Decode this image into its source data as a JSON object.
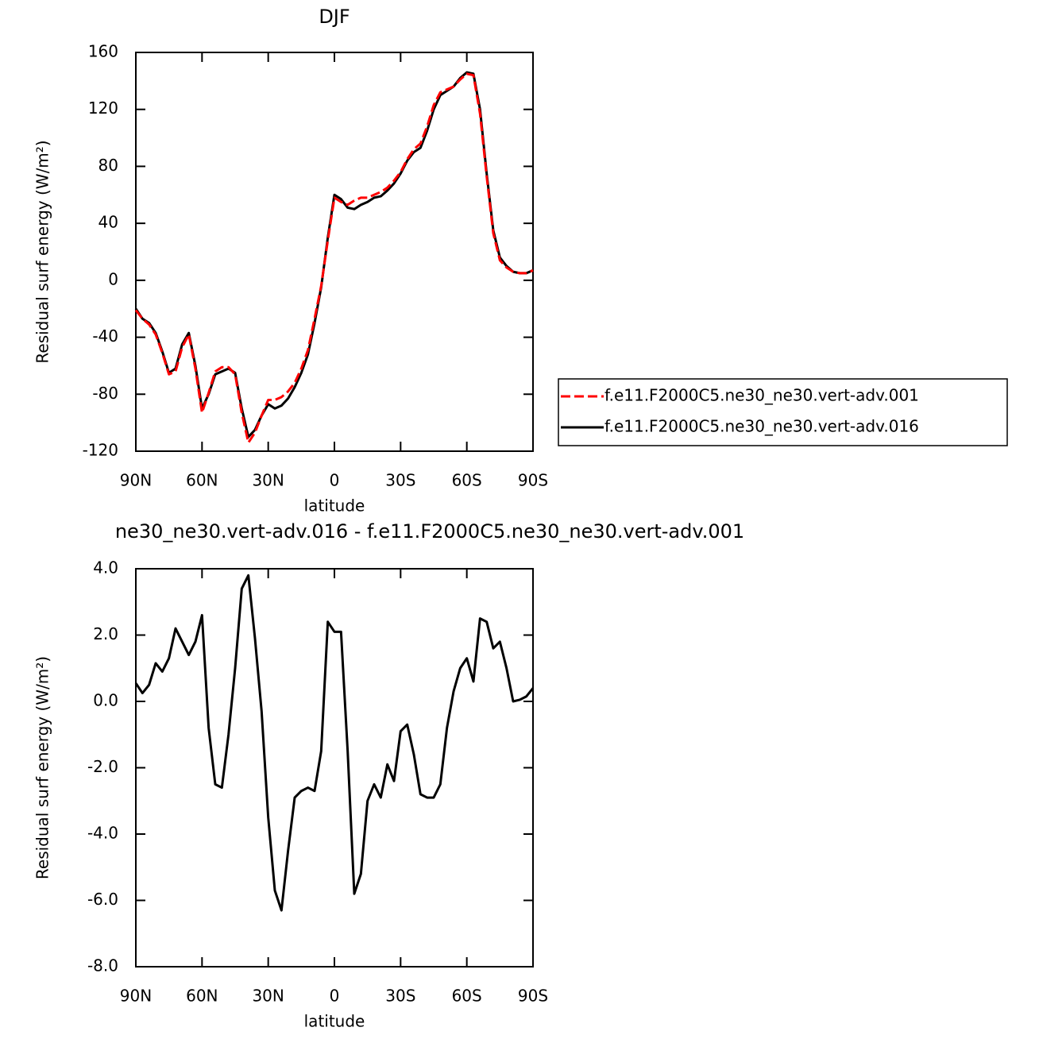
{
  "chart_data": [
    {
      "type": "line",
      "title": "DJF",
      "xlabel": "latitude",
      "ylabel": "Residual surf energy (W/m²)",
      "x": [
        90,
        87,
        84,
        81,
        78,
        75,
        72,
        69,
        66,
        63,
        60,
        57,
        54,
        51,
        48,
        45,
        42,
        39,
        36,
        33,
        30,
        27,
        24,
        21,
        18,
        15,
        12,
        9,
        6,
        3,
        0,
        -3,
        -6,
        -9,
        -12,
        -15,
        -18,
        -21,
        -24,
        -27,
        -30,
        -33,
        -36,
        -39,
        -42,
        -45,
        -48,
        -51,
        -54,
        -57,
        -60,
        -63,
        -66,
        -69,
        -72,
        -75,
        -78,
        -81,
        -84,
        -87,
        -90
      ],
      "xlim": [
        90,
        -90
      ],
      "xticks": [
        {
          "value": 90,
          "label": "90N"
        },
        {
          "value": 60,
          "label": "60N"
        },
        {
          "value": 30,
          "label": "30N"
        },
        0,
        {
          "value": -30,
          "label": "30S"
        },
        {
          "value": -60,
          "label": "60S"
        },
        {
          "value": -90,
          "label": "90S"
        }
      ],
      "ylim": [
        -120,
        160
      ],
      "yticks": [
        160,
        120,
        80,
        40,
        0,
        -40,
        -80,
        -120
      ],
      "legend": "right",
      "series": [
        {
          "name": "f.e11.F2000C5.ne30_ne30.vert-adv.001",
          "color": "#ff0000",
          "dashed": true,
          "values": [
            -21,
            -27,
            -31,
            -38,
            -51,
            -66,
            -64,
            -47,
            -38,
            -62,
            -93,
            -79,
            -64,
            -61,
            -61,
            -66,
            -93,
            -114,
            -107,
            -95,
            -84,
            -84,
            -82,
            -78,
            -72,
            -62,
            -49,
            -27,
            -4,
            28,
            58,
            55,
            53,
            56,
            58,
            58,
            60,
            62,
            65,
            70,
            76,
            85,
            92,
            96,
            108,
            123,
            132,
            134,
            136,
            141,
            145,
            144,
            117,
            73,
            33,
            14,
            9,
            6,
            5,
            5,
            7
          ]
        },
        {
          "name": "f.e11.F2000C5.ne30_ne30.vert-adv.016",
          "color": "#000000",
          "dashed": false,
          "values": [
            -20,
            -27,
            -30,
            -37,
            -50,
            -65,
            -62,
            -45,
            -37,
            -60,
            -90,
            -80,
            -66,
            -64,
            -62,
            -65,
            -90,
            -110,
            -105,
            -95,
            -87,
            -90,
            -88,
            -83,
            -75,
            -65,
            -52,
            -30,
            -5,
            30,
            60,
            57,
            51,
            50,
            53,
            55,
            58,
            59,
            63,
            68,
            75,
            84,
            90,
            93,
            105,
            120,
            130,
            133,
            136,
            142,
            146,
            145,
            120,
            75,
            35,
            16,
            10,
            6,
            5,
            5,
            7
          ]
        }
      ]
    },
    {
      "type": "line",
      "title": "ne30_ne30.vert-adv.016 - f.e11.F2000C5.ne30_ne30.vert-adv.001",
      "xlabel": "latitude",
      "ylabel": "Residual surf energy (W/m²)",
      "x": [
        90,
        87,
        84,
        81,
        78,
        75,
        72,
        69,
        66,
        63,
        60,
        57,
        54,
        51,
        48,
        45,
        42,
        39,
        36,
        33,
        30,
        27,
        24,
        21,
        18,
        15,
        12,
        9,
        6,
        3,
        0,
        -3,
        -6,
        -9,
        -12,
        -15,
        -18,
        -21,
        -24,
        -27,
        -30,
        -33,
        -36,
        -39,
        -42,
        -45,
        -48,
        -51,
        -54,
        -57,
        -60,
        -63,
        -66,
        -69,
        -72,
        -75,
        -78,
        -81,
        -84,
        -87,
        -90
      ],
      "xlim": [
        90,
        -90
      ],
      "xticks": [
        {
          "value": 90,
          "label": "90N"
        },
        {
          "value": 60,
          "label": "60N"
        },
        {
          "value": 30,
          "label": "30N"
        },
        0,
        {
          "value": -30,
          "label": "30S"
        },
        {
          "value": -60,
          "label": "60S"
        },
        {
          "value": -90,
          "label": "90S"
        }
      ],
      "ylim": [
        -8,
        4
      ],
      "yticks": [
        {
          "value": 4,
          "label": "4.0"
        },
        {
          "value": 2,
          "label": "2.0"
        },
        {
          "value": 0,
          "label": "0.0"
        },
        {
          "value": -2,
          "label": "-2.0"
        },
        {
          "value": -4,
          "label": "-4.0"
        },
        {
          "value": -6,
          "label": "-6.0"
        },
        {
          "value": -8,
          "label": "-8.0"
        }
      ],
      "series": [
        {
          "color": "#000000",
          "dashed": false,
          "values": [
            0.55,
            0.25,
            0.5,
            1.15,
            0.9,
            1.3,
            2.2,
            1.8,
            1.4,
            1.8,
            2.6,
            -0.8,
            -2.5,
            -2.6,
            -1.0,
            1.0,
            3.4,
            3.8,
            1.9,
            -0.3,
            -3.5,
            -5.7,
            -6.3,
            -4.5,
            -2.9,
            -2.7,
            -2.6,
            -2.7,
            -1.5,
            2.4,
            2.1,
            2.1,
            -1.5,
            -5.8,
            -5.2,
            -3.0,
            -2.5,
            -2.9,
            -1.9,
            -2.4,
            -0.9,
            -0.7,
            -1.6,
            -2.8,
            -2.9,
            -2.9,
            -2.5,
            -0.8,
            0.3,
            1.0,
            1.3,
            0.6,
            2.5,
            2.4,
            1.6,
            1.8,
            1.0,
            0.0,
            0.05,
            0.15,
            0.4
          ]
        }
      ]
    }
  ]
}
